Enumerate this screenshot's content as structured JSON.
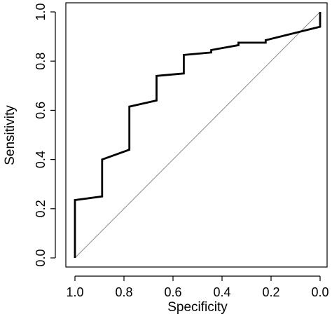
{
  "chart_data": {
    "type": "line",
    "xlabel": "Specificity",
    "ylabel": "Sensitivity",
    "xlim": [
      1.0,
      0.0
    ],
    "ylim": [
      0.0,
      1.0
    ],
    "x_reversed": true,
    "grid": false,
    "x_ticks": [
      "1.0",
      "0.8",
      "0.6",
      "0.4",
      "0.2",
      "0.0"
    ],
    "y_ticks": [
      "0.0",
      "0.2",
      "0.4",
      "0.6",
      "0.8",
      "1.0"
    ],
    "series": [
      {
        "x": [
          1.0,
          1.0,
          0.889,
          0.889,
          0.778,
          0.778,
          0.667,
          0.667,
          0.556,
          0.556,
          0.444,
          0.444,
          0.333,
          0.333,
          0.222,
          0.222,
          0.0,
          0.0
        ],
        "y": [
          0.0,
          0.235,
          0.25,
          0.4,
          0.44,
          0.615,
          0.64,
          0.74,
          0.75,
          0.825,
          0.835,
          0.845,
          0.865,
          0.875,
          0.875,
          0.885,
          0.94,
          1.0
        ],
        "color": "#000000"
      },
      {
        "x": [
          1.0,
          0.0
        ],
        "y": [
          0.0,
          1.0
        ],
        "color": "#8c8c8c"
      }
    ]
  }
}
